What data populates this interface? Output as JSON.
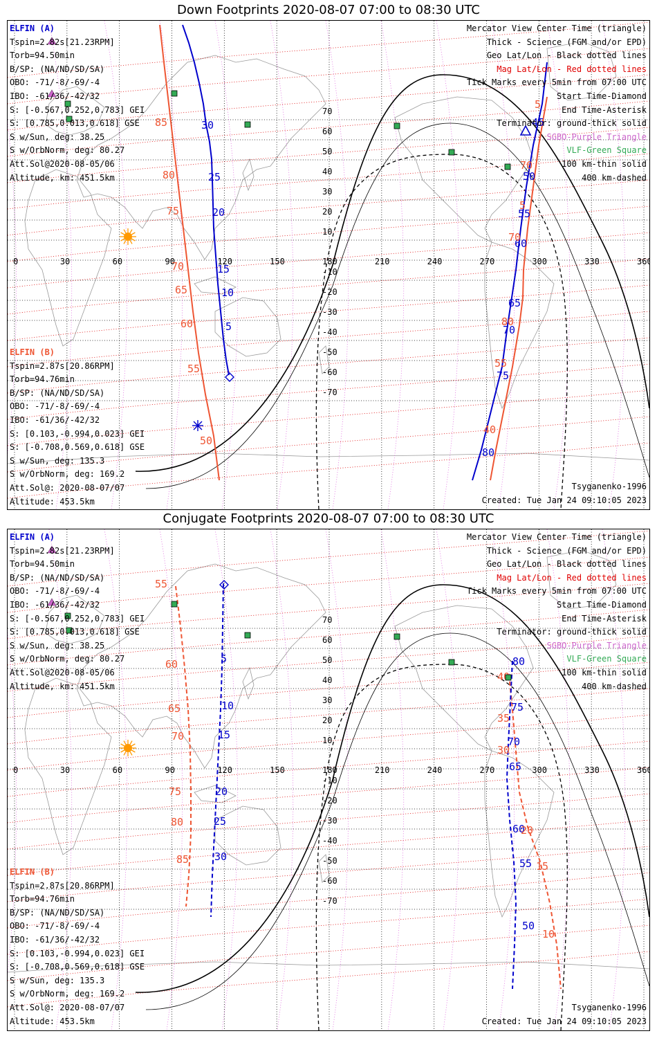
{
  "panels": [
    {
      "id": "down",
      "title": "Down Footprints 2020-08-07 07:00 to 08:30 UTC",
      "mode": "down",
      "elfin_a": {
        "header": "ELFIN (A)",
        "lines": [
          "Tspin=2.82s[21.23RPM]",
          "Torb=94.50min",
          "B/SP: (NA/ND/SD/SA)",
          "OBO: -71/-8/-69/-4",
          "IBO: -61/36/-42/32",
          "S: [-0.567,0.252,0.783] GEI",
          "S: [0.785,0.013,0.618] GSE",
          "S w/Sun, deg: 38.25",
          "S w/OrbNorm, deg: 80.27",
          "Att.Sol@2020-08-05/06",
          "Altitude, km: 451.5km"
        ]
      },
      "elfin_b": {
        "header": "ELFIN (B)",
        "lines": [
          "Tspin=2.87s[20.86RPM]",
          "Torb=94.76min",
          "B/SP: (NA/ND/SD/SA)",
          "OBO: -71/-8/-69/-4",
          "IBO: -61/36/-42/32",
          "S: [0.103,-0.994,0.023] GEI",
          "S: [-0.708,0.569,0.618] GSE",
          "S w/Sun, deg: 135.3",
          "S w/OrbNorm, deg: 169.2",
          "Att.Sol@: 2020-08-07/07",
          "Altitude: 453.5km"
        ]
      },
      "model": "Tsyganenko-1996",
      "created": "Created: Tue Jan 24 09:10:05 2023",
      "a_track_west": [
        [
          253,
          6
        ],
        [
          262,
          32
        ],
        [
          270,
          60
        ],
        [
          277,
          90
        ],
        [
          283,
          120
        ],
        [
          287,
          150
        ],
        [
          292,
          175
        ],
        [
          295,
          200
        ],
        [
          296,
          230
        ],
        [
          297,
          265
        ],
        [
          298,
          300
        ],
        [
          301,
          340
        ],
        [
          304,
          380
        ],
        [
          308,
          420
        ],
        [
          312,
          460
        ],
        [
          316,
          490
        ],
        [
          320,
          512
        ]
      ],
      "a_labels_west": [
        {
          "t": "30",
          "x": 280,
          "y": 156
        },
        {
          "t": "25",
          "x": 290,
          "y": 231
        },
        {
          "t": "20",
          "x": 296,
          "y": 282
        },
        {
          "t": "15",
          "x": 303,
          "y": 364
        },
        {
          "t": "10",
          "x": 309,
          "y": 398
        },
        {
          "t": "5",
          "x": 315,
          "y": 447
        }
      ],
      "b_track_west": [
        [
          220,
          6
        ],
        [
          226,
          60
        ],
        [
          233,
          120
        ],
        [
          240,
          180
        ],
        [
          247,
          240
        ],
        [
          254,
          300
        ],
        [
          261,
          360
        ],
        [
          268,
          420
        ],
        [
          276,
          480
        ],
        [
          286,
          540
        ],
        [
          298,
          600
        ],
        [
          306,
          664
        ]
      ],
      "b_labels_west": [
        {
          "t": "85",
          "x": 213,
          "y": 152
        },
        {
          "t": "80",
          "x": 224,
          "y": 228
        },
        {
          "t": "75",
          "x": 230,
          "y": 280
        },
        {
          "t": "70",
          "x": 237,
          "y": 360
        },
        {
          "t": "65",
          "x": 242,
          "y": 394
        },
        {
          "t": "60",
          "x": 250,
          "y": 443
        },
        {
          "t": "55",
          "x": 260,
          "y": 508
        },
        {
          "t": "50",
          "x": 278,
          "y": 612
        }
      ],
      "a_track_east": [
        [
          780,
          60
        ],
        [
          773,
          120
        ],
        [
          760,
          180
        ],
        [
          750,
          240
        ],
        [
          742,
          300
        ],
        [
          735,
          360
        ],
        [
          729,
          400
        ],
        [
          723,
          440
        ],
        [
          715,
          500
        ],
        [
          700,
          560
        ],
        [
          685,
          620
        ],
        [
          672,
          664
        ]
      ],
      "a_labels_east": [
        {
          "t": "45",
          "x": 758,
          "y": 152
        },
        {
          "t": "50",
          "x": 745,
          "y": 230
        },
        {
          "t": "55",
          "x": 738,
          "y": 284
        },
        {
          "t": "60",
          "x": 733,
          "y": 327
        },
        {
          "t": "65",
          "x": 724,
          "y": 413
        },
        {
          "t": "70",
          "x": 716,
          "y": 452
        },
        {
          "t": "75",
          "x": 707,
          "y": 518
        },
        {
          "t": "80",
          "x": 686,
          "y": 629
        }
      ],
      "b_track_east": [
        [
          780,
          110
        ],
        [
          768,
          180
        ],
        [
          760,
          240
        ],
        [
          752,
          300
        ],
        [
          746,
          360
        ],
        [
          745,
          400
        ],
        [
          740,
          440
        ],
        [
          730,
          500
        ],
        [
          718,
          560
        ],
        [
          706,
          620
        ],
        [
          698,
          664
        ]
      ],
      "b_labels_east": [
        {
          "t": "5",
          "x": 762,
          "y": 126
        },
        {
          "t": "70",
          "x": 741,
          "y": 214
        },
        {
          "t": "5",
          "x": 740,
          "y": 272
        },
        {
          "t": "70",
          "x": 724,
          "y": 318
        },
        {
          "t": "80",
          "x": 714,
          "y": 440
        },
        {
          "t": "55",
          "x": 704,
          "y": 500
        },
        {
          "t": "40",
          "x": 688,
          "y": 596
        }
      ],
      "start": [
        321,
        515
      ],
      "end": [
        275,
        585
      ],
      "center_triangle": [
        749,
        160
      ],
      "sun": [
        174,
        312
      ],
      "green": [
        [
          241,
          105
        ],
        [
          87,
          120
        ],
        [
          89,
          142
        ],
        [
          347,
          150
        ],
        [
          563,
          152
        ],
        [
          642,
          190
        ],
        [
          723,
          211
        ]
      ]
    },
    {
      "id": "conj",
      "title": "Conjugate Footprints 2020-08-07 07:00 to 08:30 UTC",
      "mode": "conj",
      "elfin_a": {
        "header": "ELFIN (A)",
        "lines": [
          "Tspin=2.82s[21.23RPM]",
          "Torb=94.50min",
          "B/SP: (NA/ND/SD/SA)",
          "OBO: -71/-8/-69/-4",
          "IBO: -61/36/-42/32",
          "S: [-0.567,0.252,0.783] GEI",
          "S: [0.785,0.013,0.618] GSE",
          "S w/Sun, deg: 38.25",
          "S w/OrbNorm, deg: 80.27",
          "Att.Sol@2020-08-05/06",
          "Altitude, km: 451.5km"
        ]
      },
      "elfin_b": {
        "header": "ELFIN (B)",
        "lines": [
          "Tspin=2.87s[20.86RPM]",
          "Torb=94.76min",
          "B/SP: (NA/ND/SD/SA)",
          "OBO: -71/-8/-69/-4",
          "IBO: -61/36/-42/32",
          "S: [0.103,-0.994,0.023] GEI",
          "S: [-0.708,0.569,0.618] GSE",
          "S w/Sun, deg: 135.3",
          "S w/OrbNorm, deg: 169.2",
          "Att.Sol@: 2020-08-07/07",
          "Altitude: 453.5km"
        ]
      },
      "model": "Tsyganenko-1996",
      "created": "Created: Tue Jan 24 09:10:05 2023",
      "a_track_west": [
        [
          312,
          78
        ],
        [
          311,
          140
        ],
        [
          310,
          200
        ],
        [
          308,
          260
        ],
        [
          305,
          320
        ],
        [
          302,
          380
        ],
        [
          299,
          440
        ],
        [
          296,
          500
        ],
        [
          294,
          560
        ]
      ],
      "a_labels_west": [
        {
          "t": "5",
          "x": 308,
          "y": 192
        },
        {
          "t": "10",
          "x": 309,
          "y": 260
        },
        {
          "t": "15",
          "x": 304,
          "y": 302
        },
        {
          "t": "20",
          "x": 300,
          "y": 384
        },
        {
          "t": "25",
          "x": 298,
          "y": 427
        },
        {
          "t": "30",
          "x": 299,
          "y": 478
        }
      ],
      "b_track_west": [
        [
          243,
          82
        ],
        [
          250,
          140
        ],
        [
          256,
          200
        ],
        [
          261,
          260
        ],
        [
          264,
          320
        ],
        [
          265,
          380
        ],
        [
          265,
          440
        ],
        [
          262,
          500
        ],
        [
          258,
          545
        ]
      ],
      "b_labels_west": [
        {
          "t": "55",
          "x": 213,
          "y": 84
        },
        {
          "t": "60",
          "x": 228,
          "y": 200
        },
        {
          "t": "65",
          "x": 232,
          "y": 264
        },
        {
          "t": "70",
          "x": 237,
          "y": 304
        },
        {
          "t": "75",
          "x": 233,
          "y": 384
        },
        {
          "t": "80",
          "x": 236,
          "y": 428
        },
        {
          "t": "85",
          "x": 244,
          "y": 482
        }
      ],
      "a_track_east": [
        [
          730,
          190
        ],
        [
          727,
          250
        ],
        [
          724,
          310
        ],
        [
          722,
          360
        ],
        [
          726,
          420
        ],
        [
          732,
          480
        ],
        [
          735,
          540
        ],
        [
          733,
          600
        ],
        [
          730,
          664
        ]
      ],
      "a_labels_east": [
        {
          "t": "80",
          "x": 730,
          "y": 196
        },
        {
          "t": "75",
          "x": 728,
          "y": 262
        },
        {
          "t": "70",
          "x": 723,
          "y": 312
        },
        {
          "t": "65",
          "x": 725,
          "y": 348
        },
        {
          "t": "60",
          "x": 730,
          "y": 438
        },
        {
          "t": "55",
          "x": 740,
          "y": 488
        },
        {
          "t": "50",
          "x": 744,
          "y": 578
        }
      ],
      "b_track_east": [
        [
          725,
          210
        ],
        [
          730,
          260
        ],
        [
          734,
          310
        ],
        [
          740,
          380
        ],
        [
          752,
          430
        ],
        [
          770,
          480
        ],
        [
          784,
          540
        ],
        [
          794,
          600
        ],
        [
          800,
          664
        ]
      ],
      "b_labels_east": [
        {
          "t": "40",
          "x": 708,
          "y": 218
        },
        {
          "t": "35",
          "x": 708,
          "y": 278
        },
        {
          "t": "30",
          "x": 708,
          "y": 324
        },
        {
          "t": "20",
          "x": 742,
          "y": 440
        },
        {
          "t": "15",
          "x": 764,
          "y": 492
        },
        {
          "t": "10",
          "x": 773,
          "y": 590
        }
      ],
      "start": [
        313,
        80
      ],
      "end": null,
      "center_triangle": null,
      "sun": [
        174,
        316
      ],
      "green": [
        [
          241,
          108
        ],
        [
          87,
          125
        ],
        [
          89,
          146
        ],
        [
          347,
          153
        ],
        [
          563,
          155
        ],
        [
          642,
          192
        ],
        [
          724,
          214
        ]
      ]
    }
  ],
  "legend": [
    {
      "t": "Mercator View Center Time (triangle)",
      "c": "blk"
    },
    {
      "t": "Thick - Science (FGM and/or EPD)",
      "c": "blk"
    },
    {
      "t": "Geo Lat/Lon - Black dotted lines",
      "c": "blk"
    },
    {
      "t": "Mag Lat/Lon - Red dotted lines",
      "c": "mag"
    },
    {
      "t": "Tick Marks every 5min from 07:00 UTC",
      "c": "blk"
    },
    {
      "t": "Start Time-Diamond",
      "c": "blk"
    },
    {
      "t": "End Time-Asterisk",
      "c": "blk"
    },
    {
      "t": "Terminator: ground-thick solid",
      "c": "blk"
    },
    {
      "t": "SGBO-Purple Triangle",
      "c": "pur"
    },
    {
      "t": "VLF-Green Square",
      "c": "grn"
    },
    {
      "t": "100 km-thin solid",
      "c": "blk"
    },
    {
      "t": "400 km-dashed",
      "c": "blk"
    }
  ],
  "lon_labels": [
    "0",
    "30",
    "60",
    "90",
    "120",
    "150",
    "180",
    "210",
    "240",
    "270",
    "300",
    "330",
    "360"
  ],
  "lat_labels": [
    "70",
    "60",
    "50",
    "40",
    "30",
    "20",
    "10",
    "0",
    "-10",
    "-20",
    "-30",
    "-40",
    "-50",
    "-60",
    "-70"
  ],
  "colors": {
    "elfin_a": "#0000cc",
    "elfin_b": "#ee5533",
    "mag_grid": "#dd0000",
    "geo_grid": "#000000",
    "sgbo": "#cc66cc",
    "vlf": "#33aa55",
    "sun": "#ff9900"
  }
}
